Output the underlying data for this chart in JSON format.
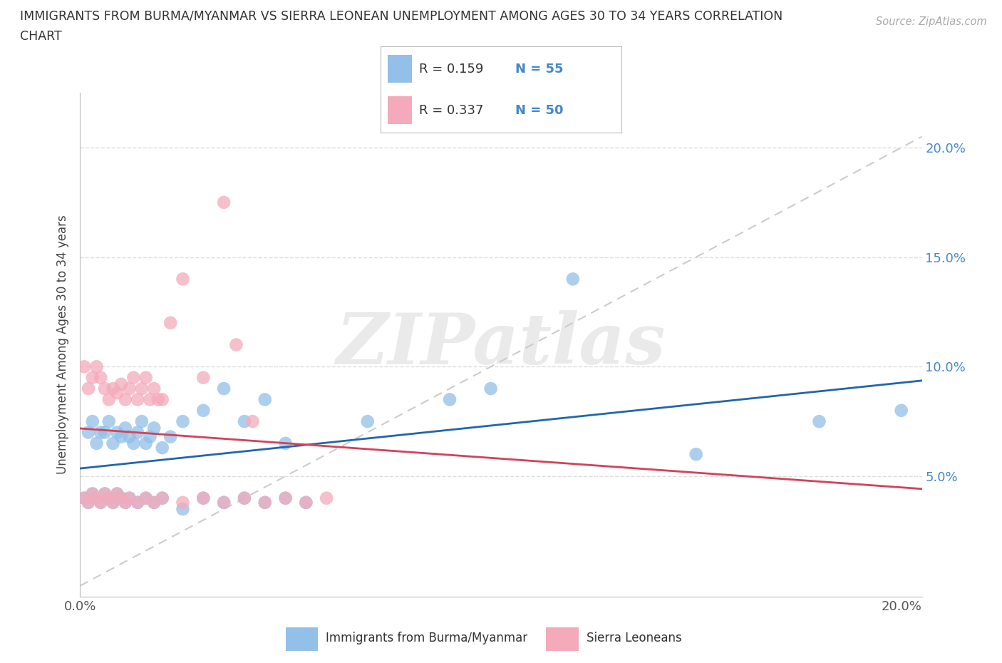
{
  "title_line1": "IMMIGRANTS FROM BURMA/MYANMAR VS SIERRA LEONEAN UNEMPLOYMENT AMONG AGES 30 TO 34 YEARS CORRELATION",
  "title_line2": "CHART",
  "source": "Source: ZipAtlas.com",
  "ylabel": "Unemployment Among Ages 30 to 34 years",
  "xlim": [
    0.0,
    0.205
  ],
  "ylim": [
    -0.005,
    0.225
  ],
  "xticks": [
    0.0,
    0.05,
    0.1,
    0.15,
    0.2
  ],
  "yticks": [
    0.0,
    0.05,
    0.1,
    0.15,
    0.2
  ],
  "xticklabels_bottom": [
    "0.0%",
    "",
    "",
    "",
    "20.0%"
  ],
  "yticklabels_right": [
    "",
    "5.0%",
    "10.0%",
    "15.0%",
    "20.0%"
  ],
  "blue_color": "#92C0E8",
  "pink_color": "#F4AABB",
  "blue_line_color": "#2166AC",
  "pink_line_color": "#D4415A",
  "tick_color": "#4488CC",
  "legend_r1": "0.159",
  "legend_n1": "55",
  "legend_r2": "0.337",
  "legend_n2": "50",
  "legend_label1": "Immigrants from Burma/Myanmar",
  "legend_label2": "Sierra Leoneans",
  "watermark": "ZIPatlas",
  "blue_x": [
    0.002,
    0.003,
    0.004,
    0.005,
    0.006,
    0.007,
    0.008,
    0.009,
    0.01,
    0.011,
    0.012,
    0.013,
    0.014,
    0.015,
    0.016,
    0.017,
    0.018,
    0.02,
    0.022,
    0.025,
    0.03,
    0.035,
    0.04,
    0.045,
    0.05,
    0.001,
    0.002,
    0.003,
    0.004,
    0.005,
    0.006,
    0.007,
    0.008,
    0.009,
    0.01,
    0.011,
    0.012,
    0.014,
    0.016,
    0.018,
    0.02,
    0.025,
    0.03,
    0.035,
    0.04,
    0.045,
    0.05,
    0.055,
    0.07,
    0.09,
    0.1,
    0.12,
    0.15,
    0.18,
    0.2
  ],
  "blue_y": [
    0.07,
    0.075,
    0.065,
    0.07,
    0.07,
    0.075,
    0.065,
    0.07,
    0.068,
    0.072,
    0.068,
    0.065,
    0.07,
    0.075,
    0.065,
    0.068,
    0.072,
    0.063,
    0.068,
    0.075,
    0.08,
    0.09,
    0.075,
    0.085,
    0.065,
    0.04,
    0.038,
    0.042,
    0.04,
    0.038,
    0.042,
    0.04,
    0.038,
    0.042,
    0.04,
    0.038,
    0.04,
    0.038,
    0.04,
    0.038,
    0.04,
    0.035,
    0.04,
    0.038,
    0.04,
    0.038,
    0.04,
    0.038,
    0.075,
    0.085,
    0.09,
    0.14,
    0.06,
    0.075,
    0.08
  ],
  "pink_x": [
    0.001,
    0.002,
    0.003,
    0.004,
    0.005,
    0.006,
    0.007,
    0.008,
    0.009,
    0.01,
    0.011,
    0.012,
    0.013,
    0.014,
    0.015,
    0.016,
    0.017,
    0.018,
    0.019,
    0.02,
    0.022,
    0.025,
    0.03,
    0.001,
    0.002,
    0.003,
    0.004,
    0.005,
    0.006,
    0.007,
    0.008,
    0.009,
    0.01,
    0.011,
    0.012,
    0.014,
    0.016,
    0.018,
    0.02,
    0.025,
    0.03,
    0.035,
    0.04,
    0.045,
    0.05,
    0.055,
    0.06,
    0.035,
    0.038,
    0.042
  ],
  "pink_y": [
    0.1,
    0.09,
    0.095,
    0.1,
    0.095,
    0.09,
    0.085,
    0.09,
    0.088,
    0.092,
    0.085,
    0.09,
    0.095,
    0.085,
    0.09,
    0.095,
    0.085,
    0.09,
    0.085,
    0.085,
    0.12,
    0.14,
    0.095,
    0.04,
    0.038,
    0.042,
    0.04,
    0.038,
    0.042,
    0.04,
    0.038,
    0.042,
    0.04,
    0.038,
    0.04,
    0.038,
    0.04,
    0.038,
    0.04,
    0.038,
    0.04,
    0.038,
    0.04,
    0.038,
    0.04,
    0.038,
    0.04,
    0.175,
    0.11,
    0.075
  ]
}
